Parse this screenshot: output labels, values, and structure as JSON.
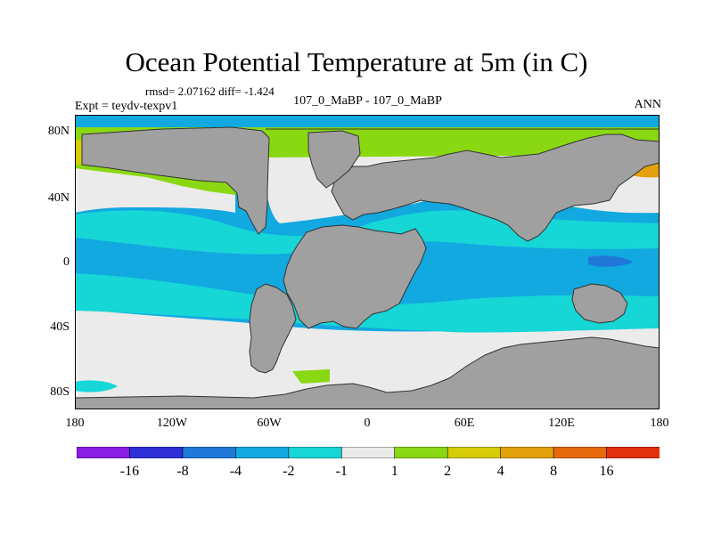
{
  "title": "Ocean Potential Temperature at 5m (in C)",
  "stats": "rmsd= 2.07162 diff= -1.424",
  "experiment": "Expt = teydv-texpv1",
  "comparison": "107_0_MaBP - 107_0_MaBP",
  "season": "ANN",
  "latitude_labels": [
    "80N",
    "40N",
    "0",
    "40S",
    "80S"
  ],
  "longitude_labels": [
    "180",
    "120W",
    "60W",
    "0",
    "60E",
    "120E",
    "180"
  ],
  "colorbar": {
    "colors": [
      "#8a1ee6",
      "#2f2fd8",
      "#1f78d8",
      "#12a8e0",
      "#16d6d6",
      "#ebebeb",
      "#8ad812",
      "#d6cd08",
      "#e3a10c",
      "#e66a0c",
      "#e22f0c"
    ],
    "labels": [
      "-16",
      "-8",
      "-4",
      "-2",
      "-1",
      "1",
      "2",
      "4",
      "8",
      "16"
    ]
  },
  "map": {
    "land_color": "#a0a0a0",
    "dominant_anomaly": "-2 to -4",
    "regions": [
      "land-masses",
      "arctic-positive-anomaly",
      "tropical-negative-anomaly",
      "southern-ocean-near-zero"
    ]
  }
}
